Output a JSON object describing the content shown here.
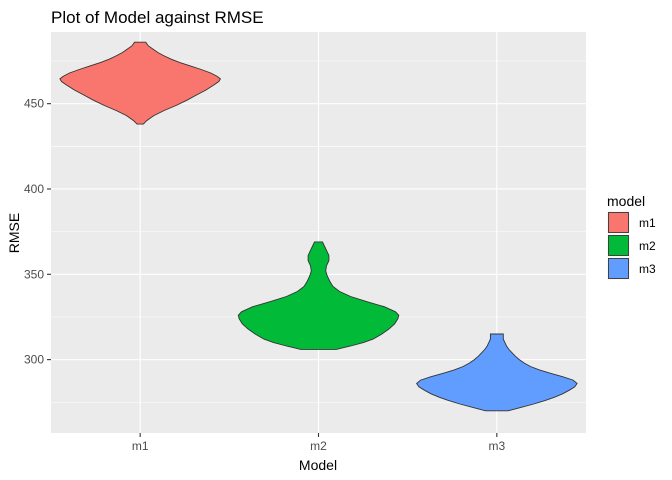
{
  "chart_data": {
    "type": "violin",
    "title": "Plot of Model against RMSE",
    "xlabel": "Model",
    "ylabel": "RMSE",
    "ylim": [
      257,
      492
    ],
    "y_ticks": [
      300,
      350,
      400,
      450
    ],
    "categories": [
      "m1",
      "m2",
      "m3"
    ],
    "legend": {
      "title": "model",
      "position": "right"
    },
    "grid": true,
    "panel_background": "#ebebeb",
    "series": [
      {
        "name": "m1",
        "color": "#f8766d",
        "min": 438,
        "max": 486,
        "profile": [
          [
            438,
            0.04
          ],
          [
            440,
            0.08
          ],
          [
            443,
            0.17
          ],
          [
            446,
            0.3
          ],
          [
            449,
            0.45
          ],
          [
            452,
            0.58
          ],
          [
            455,
            0.7
          ],
          [
            458,
            0.82
          ],
          [
            461,
            0.92
          ],
          [
            463,
            0.98
          ],
          [
            464.5,
            1.0
          ],
          [
            466,
            0.96
          ],
          [
            468,
            0.88
          ],
          [
            470,
            0.76
          ],
          [
            472,
            0.63
          ],
          [
            474,
            0.5
          ],
          [
            476,
            0.39
          ],
          [
            478,
            0.3
          ],
          [
            480,
            0.22
          ],
          [
            482,
            0.16
          ],
          [
            484,
            0.1
          ],
          [
            486,
            0.07
          ]
        ]
      },
      {
        "name": "m2",
        "color": "#00ba38",
        "min": 306,
        "max": 369,
        "profile": [
          [
            306,
            0.22
          ],
          [
            308,
            0.4
          ],
          [
            310,
            0.56
          ],
          [
            312,
            0.68
          ],
          [
            315,
            0.79
          ],
          [
            318,
            0.88
          ],
          [
            321,
            0.95
          ],
          [
            324,
            0.99
          ],
          [
            326,
            1.0
          ],
          [
            328,
            0.96
          ],
          [
            331,
            0.82
          ],
          [
            334,
            0.6
          ],
          [
            337,
            0.4
          ],
          [
            340,
            0.26
          ],
          [
            343,
            0.18
          ],
          [
            346,
            0.14
          ],
          [
            349,
            0.11
          ],
          [
            352,
            0.09
          ],
          [
            355,
            0.1
          ],
          [
            358,
            0.13
          ],
          [
            361,
            0.13
          ],
          [
            363,
            0.11
          ],
          [
            366,
            0.08
          ],
          [
            369,
            0.05
          ]
        ]
      },
      {
        "name": "m3",
        "color": "#619cff",
        "min": 270,
        "max": 315,
        "profile": [
          [
            270,
            0.14
          ],
          [
            272,
            0.3
          ],
          [
            274,
            0.46
          ],
          [
            276,
            0.6
          ],
          [
            278,
            0.72
          ],
          [
            280,
            0.82
          ],
          [
            282,
            0.9
          ],
          [
            284,
            0.97
          ],
          [
            286,
            1.0
          ],
          [
            288,
            0.95
          ],
          [
            290,
            0.82
          ],
          [
            292,
            0.67
          ],
          [
            294,
            0.53
          ],
          [
            296,
            0.42
          ],
          [
            298,
            0.34
          ],
          [
            300,
            0.28
          ],
          [
            302,
            0.23
          ],
          [
            304,
            0.19
          ],
          [
            306,
            0.15
          ],
          [
            308,
            0.12
          ],
          [
            310,
            0.1
          ],
          [
            312,
            0.08
          ],
          [
            315,
            0.08
          ]
        ]
      }
    ]
  }
}
